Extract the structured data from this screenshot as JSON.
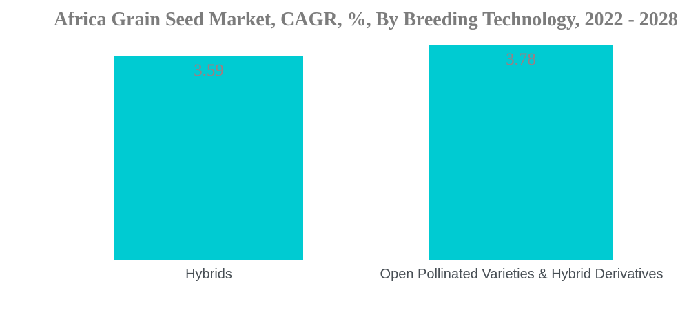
{
  "chart_data": {
    "type": "bar",
    "title": "Africa Grain Seed Market, CAGR, %, By Breeding Technology, 2022 - 2028",
    "categories": [
      "Hybrids",
      "Open Pollinated Varieties & Hybrid Derivatives"
    ],
    "values": [
      3.59,
      3.78
    ],
    "value_labels": [
      "3.59",
      "3.78"
    ],
    "unit": "%",
    "ylim": [
      0,
      4
    ],
    "grid": false,
    "legend": false,
    "axes_visible": false,
    "value_label_position": "inside-top",
    "colors": {
      "bar": "#00CBD2",
      "title": "#7C7C7C",
      "value_label": "#9D7E82",
      "category_label": "#474E54",
      "background": "#FFFFFF"
    }
  }
}
